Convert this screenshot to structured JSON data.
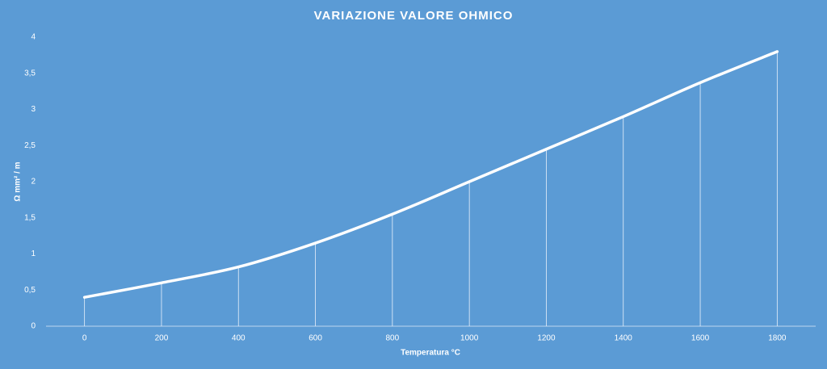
{
  "chart_data": {
    "type": "line",
    "title": "VARIAZIONE  VALORE  OHMICO",
    "x_label": "Temperatura °C",
    "y_label": "Ω mm² / m",
    "categories": [
      0,
      200,
      400,
      600,
      800,
      1000,
      1200,
      1400,
      1600,
      1800
    ],
    "series": [
      {
        "name": "Ω mm² / m",
        "color": "#ffffff",
        "values": [
          0.4,
          0.6,
          0.82,
          1.15,
          1.55,
          2.0,
          2.45,
          2.9,
          3.37,
          3.8
        ]
      }
    ],
    "ylim": [
      0,
      4
    ],
    "yticks": [
      0,
      {
        "value": 0.5,
        "label": "0,5"
      },
      1,
      {
        "value": 1.5,
        "label": "1,5"
      },
      2,
      {
        "value": 2.5,
        "label": "2,5"
      },
      3,
      {
        "value": 3.5,
        "label": "3,5"
      },
      4
    ],
    "drop_lines": true,
    "smooth": true,
    "background": "#5b9bd5"
  }
}
